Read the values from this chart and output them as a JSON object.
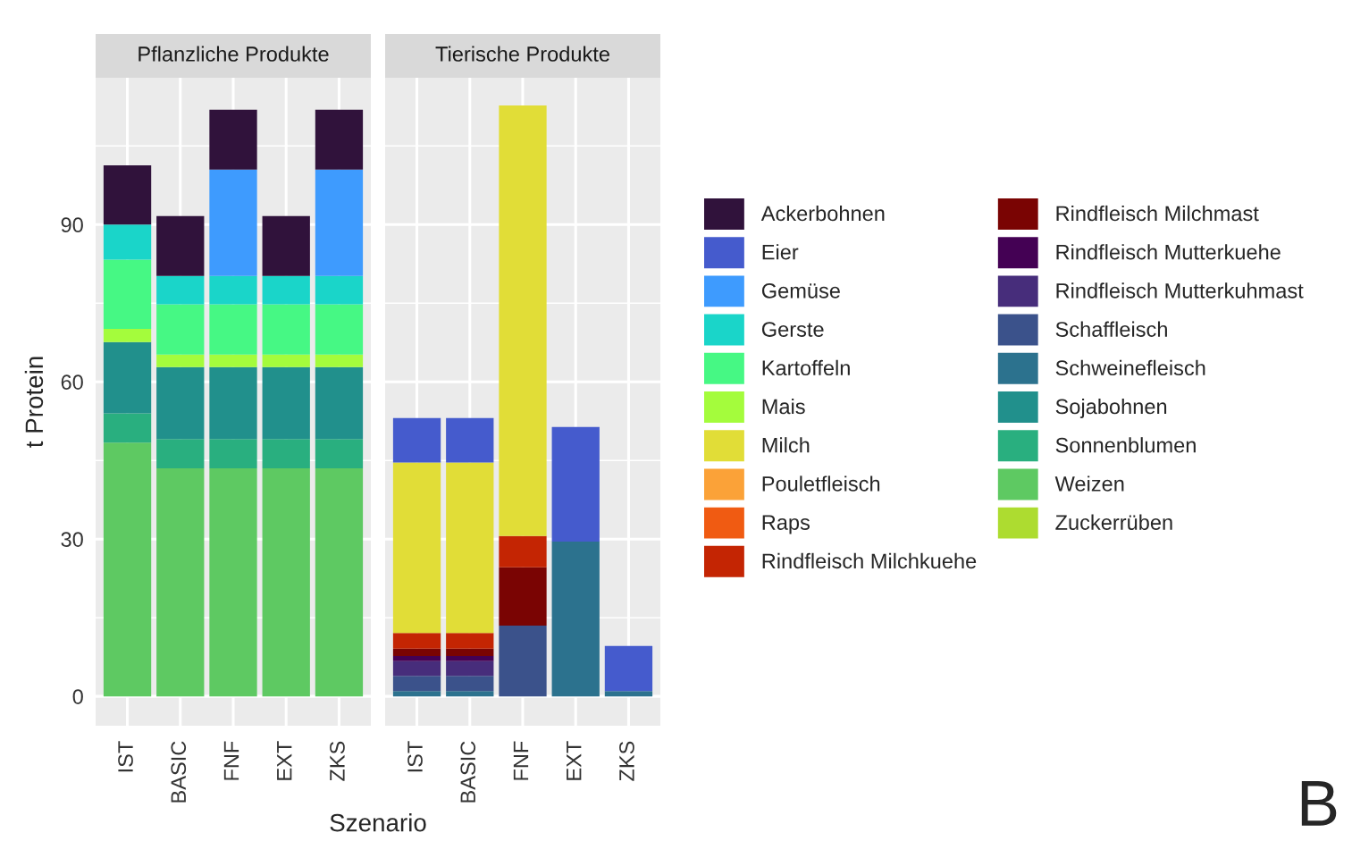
{
  "chart_data": [
    {
      "type": "bar",
      "stacked": true,
      "title": "Pflanzliche Produkte",
      "xlabel": "Szenario",
      "ylabel": "t Protein",
      "categories": [
        "IST",
        "BASIC",
        "FNF",
        "EXT",
        "ZKS"
      ],
      "ylim": [
        -5.6,
        118
      ],
      "yticks": [
        0,
        30,
        60,
        90
      ],
      "grid": true,
      "legend": "right",
      "annotations": [
        "B"
      ],
      "series": [
        {
          "name": "Zuckerrüben",
          "color": "#addc30",
          "values": [
            null,
            null,
            null,
            null,
            null
          ]
        },
        {
          "name": "Weizen",
          "color": "#5ec962",
          "values": [
            48.4,
            43.5,
            43.5,
            43.5,
            43.5
          ]
        },
        {
          "name": "Sonnenblumen",
          "color": "#29af7f",
          "values": [
            5.6,
            5.6,
            5.6,
            5.6,
            5.6
          ]
        },
        {
          "name": "Sojabohnen",
          "color": "#21908c",
          "values": [
            13.6,
            13.7,
            13.7,
            13.7,
            13.7
          ]
        },
        {
          "name": "Schweinefleisch",
          "color": "#2c728e",
          "values": [
            null,
            null,
            null,
            null,
            null
          ]
        },
        {
          "name": "Schaffleisch",
          "color": "#3b528b",
          "values": [
            null,
            null,
            null,
            null,
            null
          ]
        },
        {
          "name": "Rindfleisch Mutterkuhmast",
          "color": "#472d7b",
          "values": [
            null,
            null,
            null,
            null,
            null
          ]
        },
        {
          "name": "Rindfleisch Mutterkuehe",
          "color": "#440154",
          "values": [
            null,
            null,
            null,
            null,
            null
          ]
        },
        {
          "name": "Rindfleisch Milchmast",
          "color": "#7a0403",
          "values": [
            null,
            null,
            null,
            null,
            null
          ]
        },
        {
          "name": "Rindfleisch Milchkuehe",
          "color": "#c42503",
          "values": [
            null,
            null,
            null,
            null,
            null
          ]
        },
        {
          "name": "Raps",
          "color": "#f05b12",
          "values": [
            null,
            null,
            null,
            null,
            null
          ]
        },
        {
          "name": "Pouletfleisch",
          "color": "#fba238",
          "values": [
            null,
            null,
            null,
            null,
            null
          ]
        },
        {
          "name": "Milch",
          "color": "#e1dd37",
          "values": [
            null,
            null,
            null,
            null,
            null
          ]
        },
        {
          "name": "Mais",
          "color": "#a4fc3c",
          "values": [
            2.5,
            2.4,
            2.4,
            2.4,
            2.4
          ]
        },
        {
          "name": "Kartoffeln",
          "color": "#46f884",
          "values": [
            13.2,
            9.6,
            9.6,
            9.6,
            9.6
          ]
        },
        {
          "name": "Gerste",
          "color": "#1ad5c9",
          "values": [
            6.7,
            5.4,
            5.4,
            5.4,
            5.4
          ]
        },
        {
          "name": "Gemüse",
          "color": "#3e9bfe",
          "values": [
            null,
            null,
            20.3,
            null,
            20.3
          ]
        },
        {
          "name": "Eier",
          "color": "#455bcd",
          "values": [
            null,
            null,
            null,
            null,
            null
          ]
        },
        {
          "name": "Ackerbohnen",
          "color": "#30123b",
          "values": [
            11.3,
            11.4,
            11.4,
            11.4,
            11.4
          ]
        }
      ]
    },
    {
      "type": "bar",
      "stacked": true,
      "title": "Tierische Produkte",
      "categories": [
        "IST",
        "BASIC",
        "FNF",
        "EXT",
        "ZKS"
      ],
      "ylim": [
        -5.6,
        118
      ],
      "yticks": [
        0,
        30,
        60,
        90
      ],
      "grid": true,
      "tick_labels": "x",
      "series": [
        {
          "color": "#2c728e",
          "values": [
            1.0,
            1.0,
            null,
            29.5,
            1.0
          ]
        },
        {
          "color": "#3b528b",
          "values": [
            2.9,
            2.9,
            13.5,
            null,
            null
          ]
        },
        {
          "color": "#472d7b",
          "values": [
            2.8,
            2.8,
            null,
            null,
            null
          ]
        },
        {
          "color": "#440154",
          "values": [
            1.0,
            1.0,
            null,
            null,
            null
          ]
        },
        {
          "color": "#7a0403",
          "values": [
            1.4,
            1.4,
            11.1,
            null,
            null
          ]
        },
        {
          "color": "#c42503",
          "values": [
            3.0,
            3.0,
            6.0,
            null,
            null
          ]
        },
        {
          "color": "#e1dd37",
          "values": [
            32.5,
            32.5,
            82.1,
            null,
            null
          ]
        },
        {
          "color": "#455bcd",
          "values": [
            8.5,
            8.5,
            null,
            21.9,
            8.6
          ]
        }
      ]
    }
  ]
}
